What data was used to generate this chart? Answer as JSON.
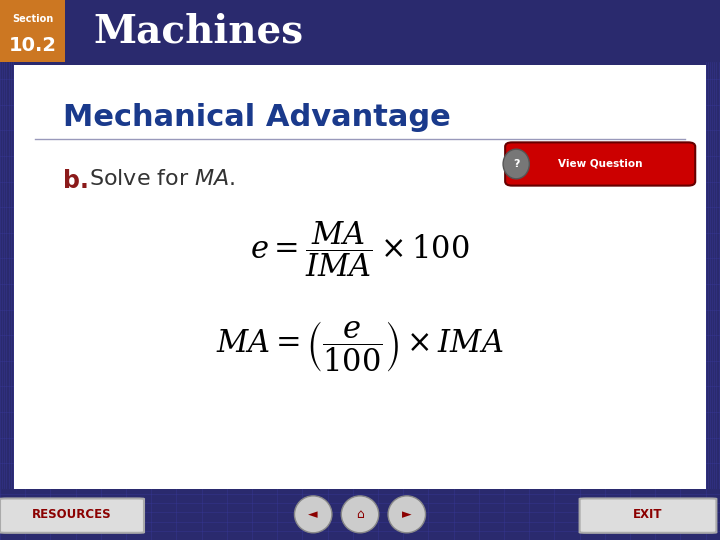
{
  "header_bg_color": "#AA0000",
  "header_text": "Machines",
  "header_fontsize": 28,
  "section_label": "Section",
  "section_number": "10.2",
  "section_bg_color": "#CC7722",
  "title_text": "Mechanical Advantage",
  "title_color": "#1a3a8c",
  "title_fontsize": 22,
  "subtitle_b": "b.",
  "subtitle_b_color": "#8B1A1A",
  "subtitle_color": "#333333",
  "subtitle_fontsize": 16,
  "formula_color": "#000000",
  "formula_fontsize": 20,
  "bg_outer": "#2a2a6e",
  "bg_inner": "#ffffff",
  "footer_bg": "#2a2a6e",
  "resources_text": "RESOURCES",
  "exit_text": "EXIT",
  "view_question_text": "View Question",
  "view_question_bg": "#CC0000"
}
